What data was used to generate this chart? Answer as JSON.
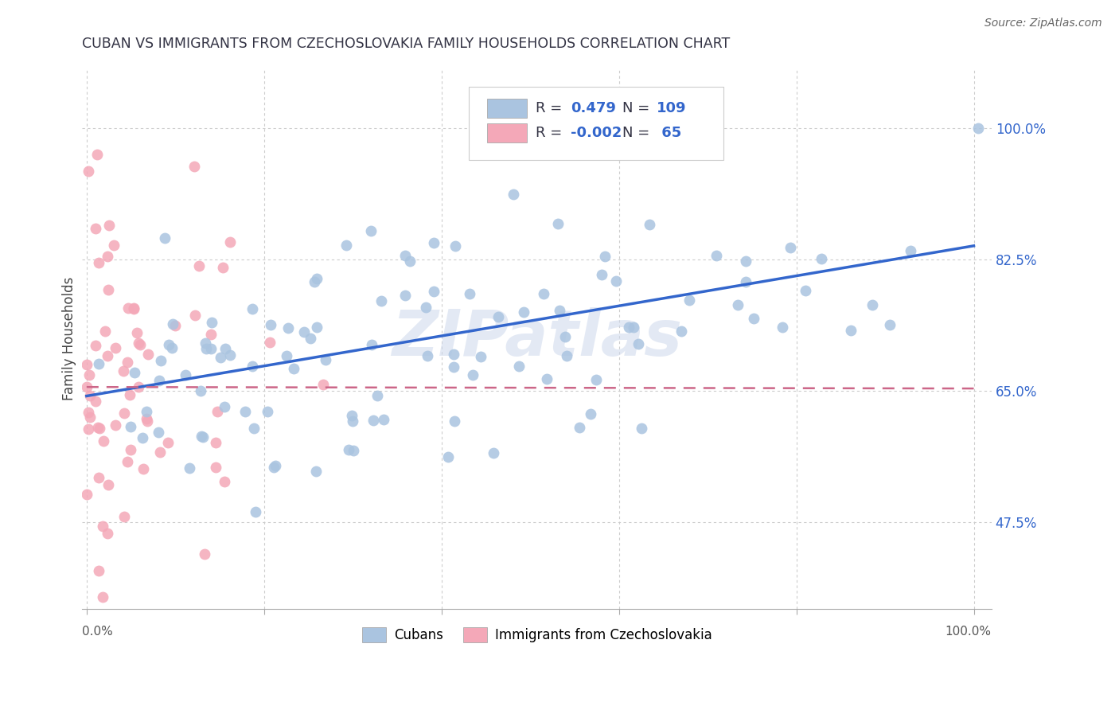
{
  "title": "CUBAN VS IMMIGRANTS FROM CZECHOSLOVAKIA FAMILY HOUSEHOLDS CORRELATION CHART",
  "source": "Source: ZipAtlas.com",
  "ylabel": "Family Households",
  "ytick_labels": [
    "47.5%",
    "65.0%",
    "82.5%",
    "100.0%"
  ],
  "ytick_values": [
    0.475,
    0.65,
    0.825,
    1.0
  ],
  "blue_color": "#aac4e0",
  "pink_color": "#f4a8b8",
  "blue_line_color": "#3366cc",
  "pink_line_color": "#cc6688",
  "watermark": "ZIPatlas",
  "title_color": "#333344",
  "source_color": "#666666",
  "ylabel_color": "#444444",
  "grid_color": "#cccccc",
  "tick_label_color": "#3366cc",
  "xlim_min": -0.005,
  "xlim_max": 1.02,
  "ylim_min": 0.36,
  "ylim_max": 1.08,
  "blue_line_x0": 0.0,
  "blue_line_x1": 1.0,
  "blue_line_y0": 0.643,
  "blue_line_y1": 0.843,
  "pink_line_x0": 0.0,
  "pink_line_x1": 1.0,
  "pink_line_y0": 0.655,
  "pink_line_y1": 0.653
}
